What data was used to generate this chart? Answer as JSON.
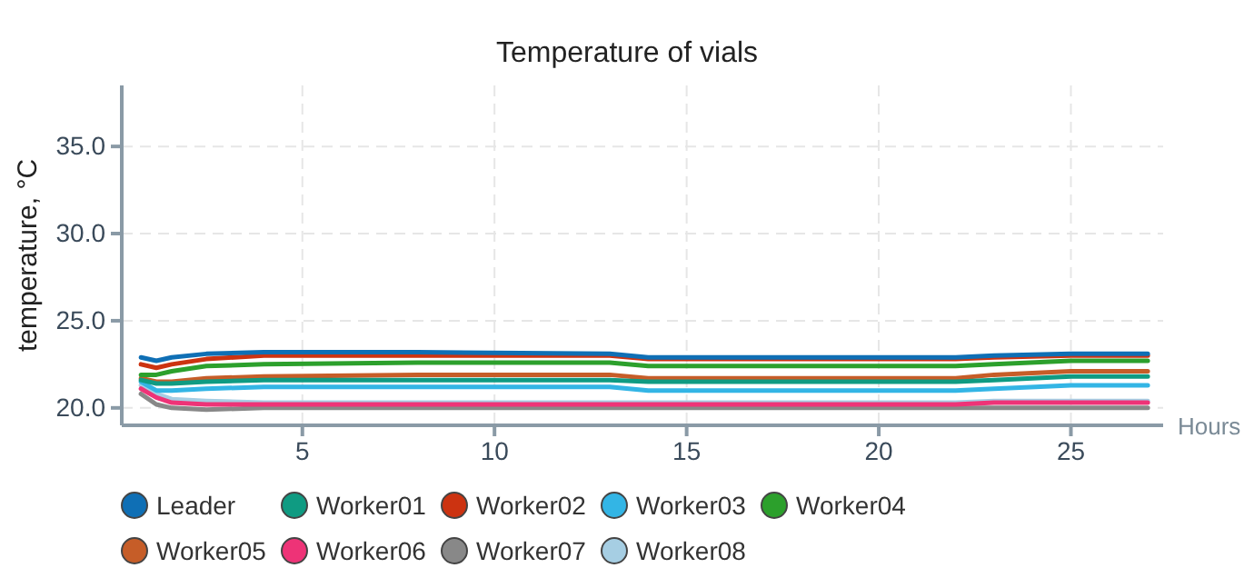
{
  "chart_data": {
    "type": "line",
    "title": "Temperature of vials",
    "xlabel": "Hours",
    "ylabel": "temperature, °C",
    "x": [
      0.8,
      1.2,
      1.6,
      2.5,
      4,
      8,
      13,
      14,
      18,
      22,
      23,
      25,
      27
    ],
    "xlim": [
      0.3,
      27.4
    ],
    "ylim": [
      19,
      38.5
    ],
    "xticks": [
      5,
      10,
      15,
      20,
      25
    ],
    "yticks": [
      {
        "value": 20,
        "label": "20.0"
      },
      {
        "value": 25,
        "label": "25.0"
      },
      {
        "value": 30,
        "label": "30.0"
      },
      {
        "value": 35,
        "label": "35.0"
      }
    ],
    "grid": true,
    "legend": "bottom",
    "line_style": "solid",
    "marker": "none",
    "series": [
      {
        "name": "Leader",
        "color": "#0f6fb5",
        "values": [
          22.9,
          22.7,
          22.9,
          23.1,
          23.2,
          23.2,
          23.1,
          22.9,
          22.9,
          22.9,
          23.0,
          23.1,
          23.1
        ]
      },
      {
        "name": "Worker01",
        "color": "#0f9b82",
        "values": [
          21.6,
          21.4,
          21.4,
          21.5,
          21.6,
          21.6,
          21.6,
          21.5,
          21.5,
          21.5,
          21.6,
          21.8,
          21.8
        ]
      },
      {
        "name": "Worker02",
        "color": "#cc3311",
        "values": [
          22.5,
          22.3,
          22.5,
          22.8,
          23.0,
          23.0,
          23.0,
          22.8,
          22.8,
          22.8,
          22.9,
          23.0,
          23.0
        ]
      },
      {
        "name": "Worker03",
        "color": "#33b5e5",
        "values": [
          21.5,
          21.0,
          21.0,
          21.1,
          21.2,
          21.2,
          21.2,
          21.0,
          21.0,
          21.0,
          21.1,
          21.3,
          21.3
        ]
      },
      {
        "name": "Worker04",
        "color": "#2ca02c",
        "values": [
          21.9,
          21.9,
          22.1,
          22.4,
          22.5,
          22.6,
          22.6,
          22.4,
          22.4,
          22.4,
          22.5,
          22.7,
          22.7
        ]
      },
      {
        "name": "Worker05",
        "color": "#c65d28",
        "values": [
          21.7,
          21.5,
          21.5,
          21.7,
          21.8,
          21.9,
          21.9,
          21.7,
          21.7,
          21.7,
          21.9,
          22.1,
          22.1
        ]
      },
      {
        "name": "Worker06",
        "color": "#ee3377",
        "values": [
          21.1,
          20.6,
          20.3,
          20.2,
          20.2,
          20.2,
          20.2,
          20.2,
          20.2,
          20.2,
          20.3,
          20.3,
          20.3
        ]
      },
      {
        "name": "Worker07",
        "color": "#888888",
        "values": [
          20.8,
          20.2,
          20.0,
          19.9,
          20.0,
          20.0,
          20.0,
          20.0,
          20.0,
          20.0,
          20.0,
          20.0,
          20.0
        ]
      },
      {
        "name": "Worker08",
        "color": "#a6cee3",
        "values": [
          21.3,
          20.8,
          20.5,
          20.4,
          20.3,
          20.3,
          20.3,
          20.3,
          20.3,
          20.3,
          20.4,
          20.4,
          20.4
        ]
      }
    ]
  }
}
